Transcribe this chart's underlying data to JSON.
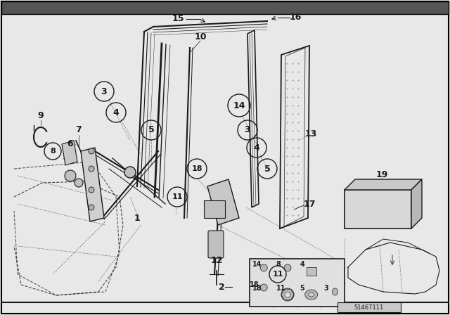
{
  "bg_color": "#e8e8e8",
  "fg_color": "#1a1a1a",
  "white": "#ffffff",
  "figsize": [
    6.4,
    4.48
  ],
  "dpi": 100,
  "border_color": "#000000",
  "title_bar_color": "#404040"
}
